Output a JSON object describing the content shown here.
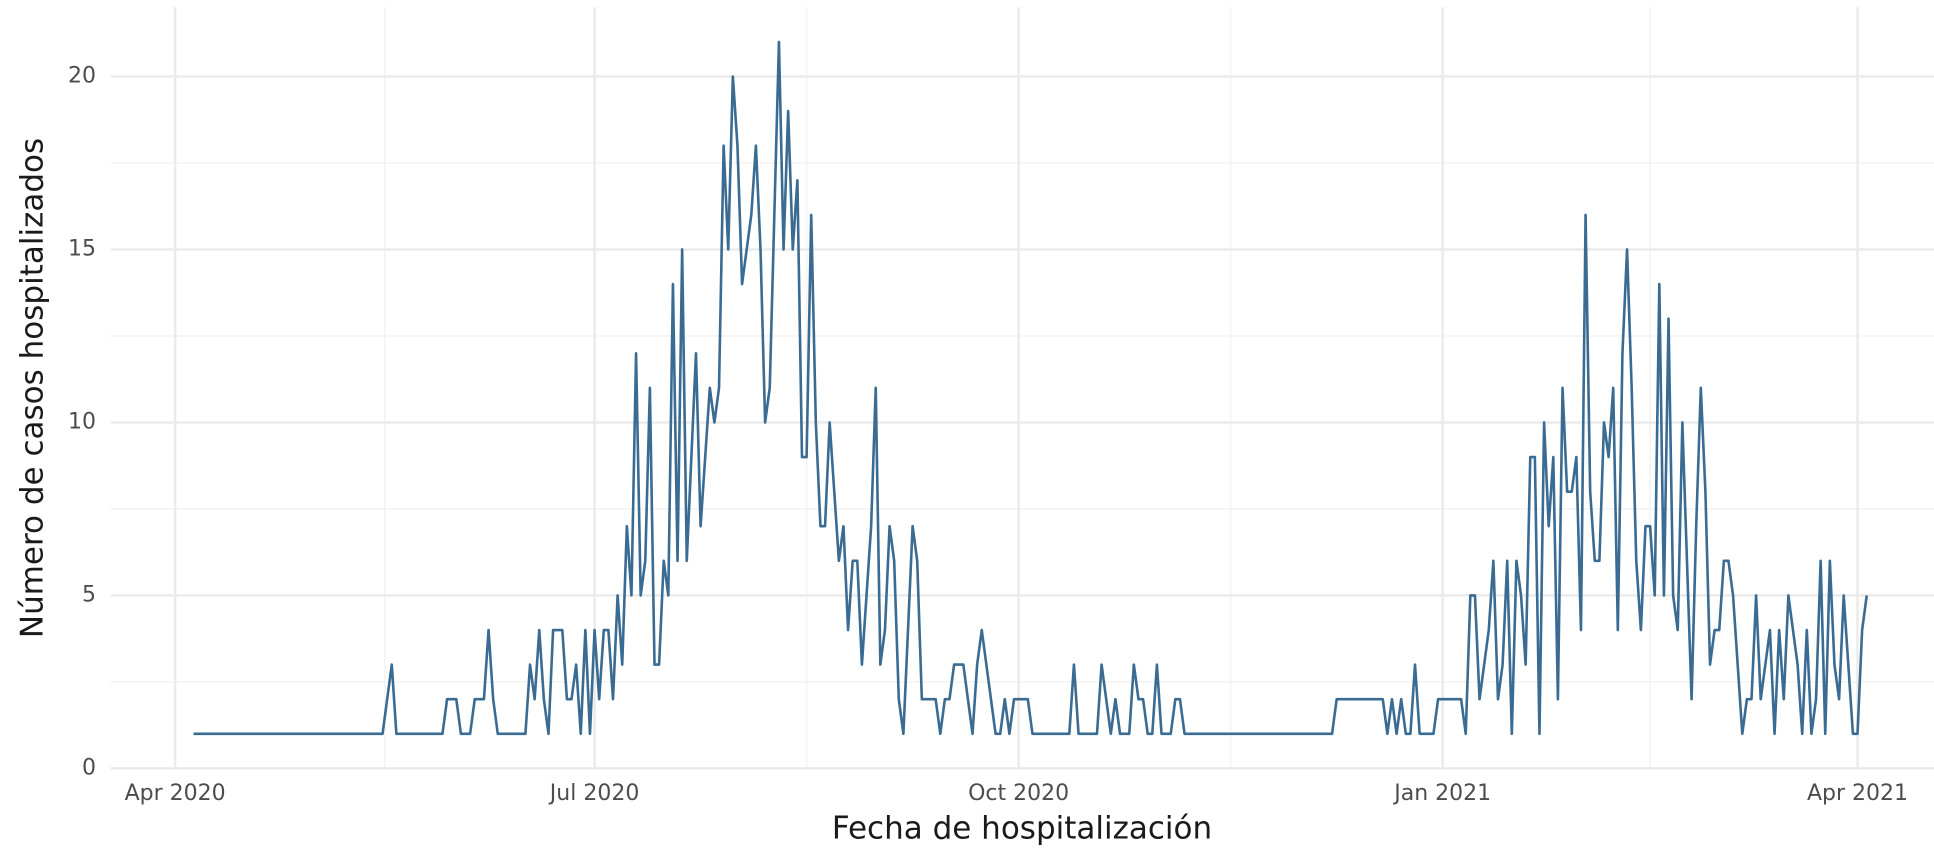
{
  "chart_data": {
    "type": "line",
    "x_label": "Fecha de hospitalización",
    "y_label": "Número de casos hospitalizados",
    "color": "#3a6b92",
    "grid": true,
    "xlim": [
      -18,
      381
    ],
    "xticks": [
      {
        "value": -4,
        "label": "Apr 2020"
      },
      {
        "value": 87,
        "label": "Jul 2020"
      },
      {
        "value": 179,
        "label": "Oct 2020"
      },
      {
        "value": 271,
        "label": "Jan 2021"
      },
      {
        "value": 361,
        "label": "Apr 2021"
      }
    ],
    "ylim": [
      0,
      22
    ],
    "yticks": [
      0,
      5,
      10,
      15,
      20
    ],
    "values": [
      1,
      1,
      1,
      1,
      1,
      1,
      1,
      1,
      1,
      1,
      1,
      1,
      1,
      1,
      1,
      1,
      1,
      1,
      1,
      1,
      1,
      1,
      1,
      1,
      1,
      1,
      1,
      1,
      1,
      1,
      1,
      1,
      1,
      1,
      1,
      1,
      1,
      1,
      1,
      1,
      1,
      1,
      2,
      3,
      1,
      1,
      1,
      1,
      1,
      1,
      1,
      1,
      1,
      1,
      1,
      2,
      2,
      2,
      1,
      1,
      1,
      2,
      2,
      2,
      4,
      2,
      1,
      1,
      1,
      1,
      1,
      1,
      1,
      3,
      2,
      4,
      2,
      1,
      4,
      4,
      4,
      2,
      2,
      3,
      1,
      4,
      1,
      4,
      2,
      4,
      4,
      2,
      5,
      3,
      7,
      5,
      12,
      5,
      6,
      11,
      3,
      3,
      6,
      5,
      14,
      6,
      15,
      6,
      9,
      12,
      7,
      9,
      11,
      10,
      11,
      18,
      15,
      20,
      18,
      14,
      15,
      16,
      18,
      15,
      10,
      11,
      16,
      21,
      15,
      19,
      15,
      17,
      9,
      9,
      16,
      10,
      7,
      7,
      10,
      8,
      6,
      7,
      4,
      6,
      6,
      3,
      5,
      7,
      11,
      3,
      4,
      7,
      6,
      2,
      1,
      4,
      7,
      6,
      2,
      2,
      2,
      2,
      1,
      2,
      2,
      3,
      3,
      3,
      2,
      1,
      3,
      4,
      3,
      2,
      1,
      1,
      2,
      1,
      2,
      2,
      2,
      2,
      1,
      1,
      1,
      1,
      1,
      1,
      1,
      1,
      1,
      3,
      1,
      1,
      1,
      1,
      1,
      3,
      2,
      1,
      2,
      1,
      1,
      1,
      3,
      2,
      2,
      1,
      1,
      3,
      1,
      1,
      1,
      2,
      2,
      1,
      1,
      1,
      1,
      1,
      1,
      1,
      1,
      1,
      1,
      1,
      1,
      1,
      1,
      1,
      1,
      1,
      1,
      1,
      1,
      1,
      1,
      1,
      1,
      1,
      1,
      1,
      1,
      1,
      1,
      1,
      1,
      1,
      2,
      2,
      2,
      2,
      2,
      2,
      2,
      2,
      2,
      2,
      2,
      1,
      2,
      1,
      2,
      1,
      1,
      3,
      1,
      1,
      1,
      1,
      2,
      2,
      2,
      2,
      2,
      2,
      1,
      5,
      5,
      2,
      3,
      4,
      6,
      2,
      3,
      6,
      1,
      6,
      5,
      3,
      9,
      9,
      1,
      10,
      7,
      9,
      2,
      11,
      8,
      8,
      9,
      4,
      16,
      8,
      6,
      6,
      10,
      9,
      11,
      4,
      12,
      15,
      11,
      6,
      4,
      7,
      7,
      5,
      14,
      5,
      13,
      5,
      4,
      10,
      6,
      2,
      7,
      11,
      8,
      3,
      4,
      4,
      6,
      6,
      5,
      3,
      1,
      2,
      2,
      5,
      2,
      3,
      4,
      1,
      4,
      2,
      5,
      4,
      3,
      1,
      4,
      1,
      2,
      6,
      1,
      6,
      3,
      2,
      5,
      3,
      1,
      1,
      4,
      5
    ]
  }
}
